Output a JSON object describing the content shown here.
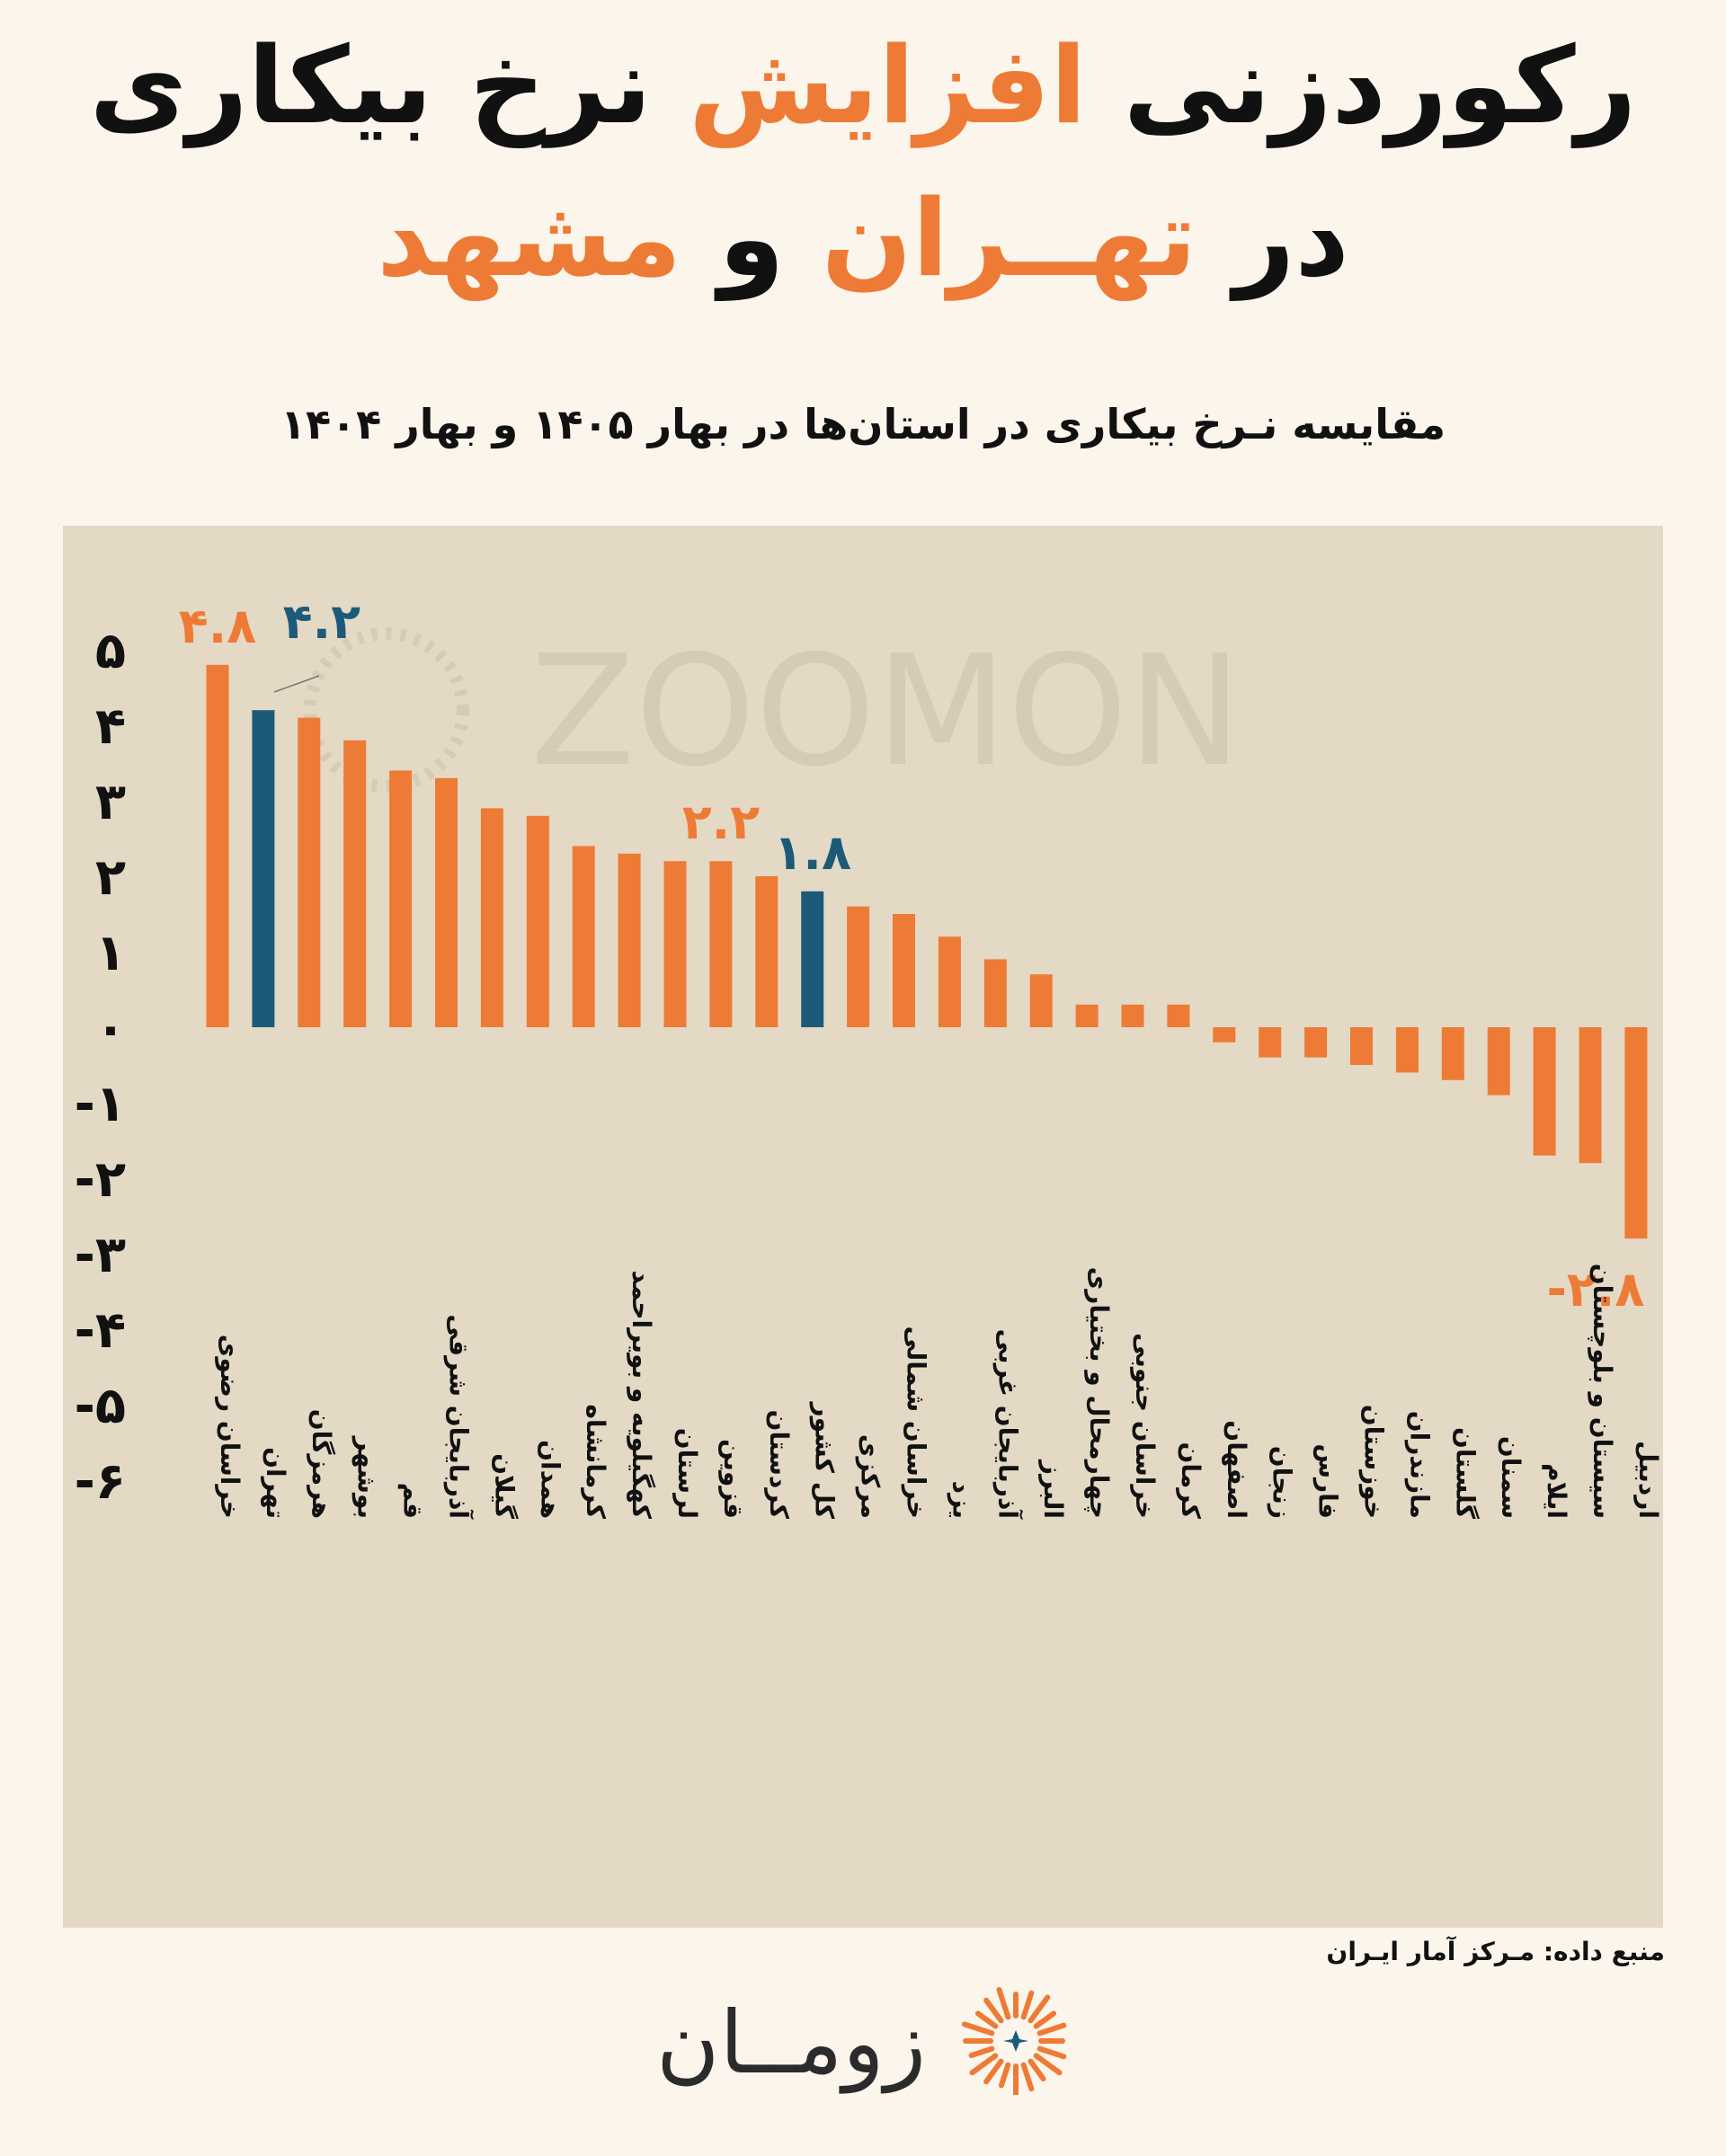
{
  "title": {
    "line1_part1": "رکوردزنی",
    "line1_highlight": "افزایش",
    "line1_part2": "نرخ بیکاری",
    "line2_part1": "در",
    "line2_highlight1": "تهــران",
    "line2_part2": "و",
    "line2_highlight2": "مشهد"
  },
  "watermark": "ZOOMON",
  "source": "منبع داده: مـرکز آمار ایـران",
  "logo_text": "زومــان",
  "colors": {
    "accent": "#ee7b35",
    "highlight": "#1d5a7a",
    "plot_background": "#e3d9c5",
    "page_background": "#fcf5ec"
  },
  "chart_data": {
    "type": "bar",
    "title": "مقایسه نـرخ بیکاری در استان‌ها در بهار ۱۴۰۵ و بهار ۱۴۰۴",
    "ylim": [
      -6,
      5
    ],
    "y_ticks": [
      {
        "value": 5,
        "label": "۵"
      },
      {
        "value": 4,
        "label": "۴"
      },
      {
        "value": 3,
        "label": "۳"
      },
      {
        "value": 2,
        "label": "۲"
      },
      {
        "value": 1,
        "label": "۱"
      },
      {
        "value": 0,
        "label": "۰"
      },
      {
        "value": -1,
        "label": "-۱"
      },
      {
        "value": -2,
        "label": "-۲"
      },
      {
        "value": -3,
        "label": "-۳"
      },
      {
        "value": -4,
        "label": "-۴"
      },
      {
        "value": -5,
        "label": "-۵"
      },
      {
        "value": -6,
        "label": "-۶"
      }
    ],
    "categories": [
      "خراسان رضوی",
      "تهران",
      "هرمزگان",
      "بوشهر",
      "قم",
      "آذربایجان شرقی",
      "گیلان",
      "همدان",
      "کرمانشاه",
      "کهگیلویه و بویراحمد",
      "لرستان",
      "قزوین",
      "کردستان",
      "کل کشور",
      "مرکزی",
      "خراسان شمالی",
      "یزد",
      "آذربایجان غربی",
      "البرز",
      "چهارمحال و بختیاری",
      "خراسان جنوبی",
      "کرمان",
      "اصفهان",
      "زنجان",
      "فارس",
      "خوزستان",
      "مازندران",
      "گلستان",
      "سمنان",
      "ایلام",
      "سیستان و بلوچستان",
      "اردبیل"
    ],
    "values": [
      4.8,
      4.2,
      4.1,
      3.8,
      3.4,
      3.3,
      2.9,
      2.8,
      2.4,
      2.3,
      2.2,
      2.2,
      2.0,
      1.8,
      1.6,
      1.5,
      1.2,
      0.9,
      0.7,
      0.3,
      0.3,
      0.3,
      -0.2,
      -0.4,
      -0.4,
      -0.5,
      -0.6,
      -0.7,
      -0.9,
      -1.7,
      -1.8,
      -2.8
    ],
    "highlighted": [
      "تهران",
      "کل کشور"
    ],
    "data_labels": [
      {
        "category": "خراسان رضوی",
        "label": "۴.۸",
        "color": "#ee7b35"
      },
      {
        "category": "تهران",
        "label": "۴.۲",
        "color": "#1d5a7a"
      },
      {
        "category": "قزوین",
        "label": "۲.۲",
        "color": "#ee7b35"
      },
      {
        "category": "کل کشور",
        "label": "۱.۸",
        "color": "#1d5a7a"
      },
      {
        "category": "اردبیل",
        "label": "-۲.۸",
        "color": "#ee7b35"
      }
    ],
    "grid": false,
    "legend": "none"
  }
}
